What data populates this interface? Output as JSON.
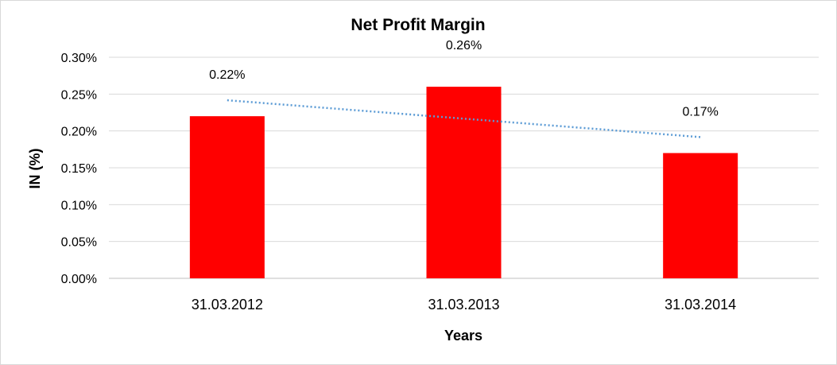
{
  "chart_data": {
    "type": "bar",
    "title": "Net Profit Margin",
    "xlabel": "Years",
    "ylabel": "IN (%)",
    "categories": [
      "31.03.2012",
      "31.03.2013",
      "31.03.2014"
    ],
    "values": [
      0.22,
      0.26,
      0.17
    ],
    "data_labels": [
      "0.22%",
      "0.26%",
      "0.17%"
    ],
    "ylim": [
      0,
      0.3
    ],
    "y_ticks": [
      "0.00%",
      "0.05%",
      "0.10%",
      "0.15%",
      "0.20%",
      "0.25%",
      "0.30%"
    ],
    "bar_color": "#ff0000",
    "trendline": {
      "type": "linear",
      "style": "dotted",
      "color": "#5b9bd5"
    },
    "grid": true,
    "legend": "none"
  }
}
